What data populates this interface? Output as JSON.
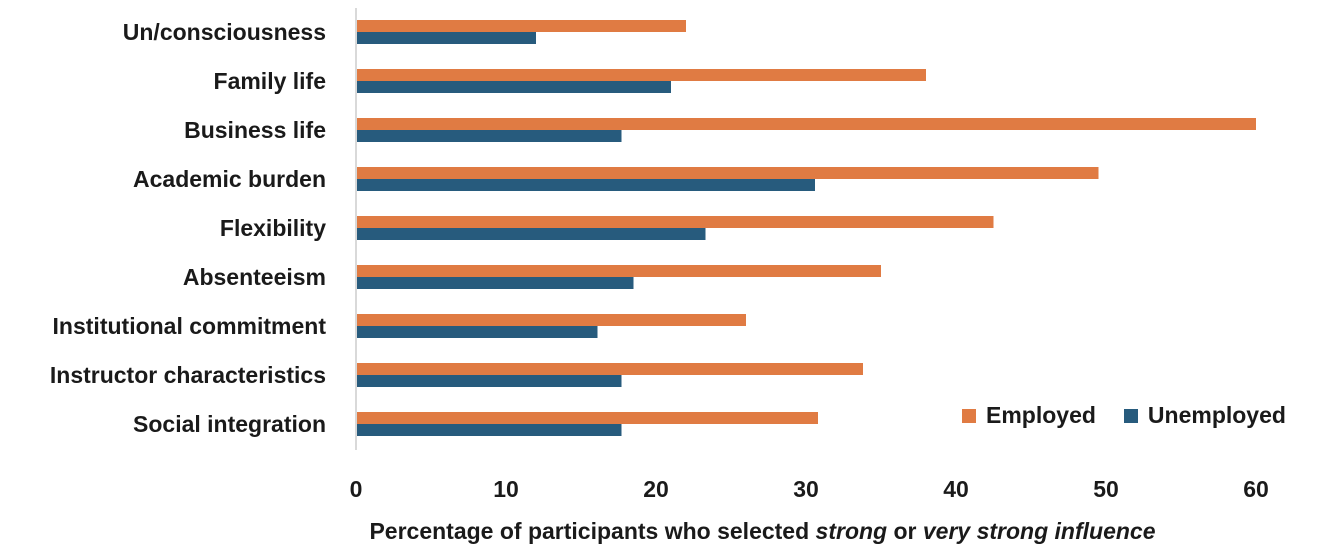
{
  "chart_data": {
    "type": "bar",
    "orientation": "horizontal",
    "categories": [
      "Un/consciousness",
      "Family life",
      "Business life",
      "Academic burden",
      "Flexibility",
      "Absenteeism",
      "Institutional commitment",
      "Instructor characteristics",
      "Social integration"
    ],
    "series": [
      {
        "name": "Employed",
        "color": "#E07B43",
        "values": [
          22,
          38,
          60,
          49.5,
          42.5,
          35,
          26,
          33.8,
          30.8
        ]
      },
      {
        "name": "Unemployed",
        "color": "#275B7D",
        "values": [
          12,
          21,
          17.7,
          30.6,
          23.3,
          18.5,
          16.1,
          17.7,
          17.7
        ]
      }
    ],
    "xlim": [
      0,
      60
    ],
    "xticks": [
      "0",
      "10",
      "20",
      "30",
      "40",
      "50",
      "60"
    ],
    "xlabel_parts": [
      "Percentage of participants who selected ",
      "strong",
      " or ",
      "very strong influence"
    ],
    "legend_position": "bottom-right",
    "grid": false
  }
}
